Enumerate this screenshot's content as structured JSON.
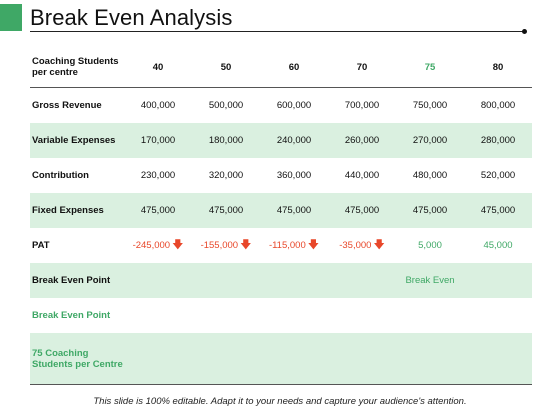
{
  "title": "Break Even Analysis",
  "colors": {
    "accent": "#3fa866",
    "row_shade": "#daf0e0",
    "loss": "#e8472a"
  },
  "table": {
    "header_label": "Coaching Students per centre",
    "columns": [
      "40",
      "50",
      "60",
      "70",
      "75",
      "80"
    ],
    "rows": [
      {
        "label": "Gross Revenue",
        "values": [
          "400,000",
          "500,000",
          "600,000",
          "700,000",
          "750,000",
          "800,000"
        ]
      },
      {
        "label": "Variable Expenses",
        "values": [
          "170,000",
          "180,000",
          "240,000",
          "260,000",
          "270,000",
          "280,000"
        ]
      },
      {
        "label": "Contribution",
        "values": [
          "230,000",
          "320,000",
          "360,000",
          "440,000",
          "480,000",
          "520,000"
        ]
      },
      {
        "label": "Fixed Expenses",
        "values": [
          "475,000",
          "475,000",
          "475,000",
          "475,000",
          "475,000",
          "475,000"
        ]
      },
      {
        "label": "PAT",
        "values": [
          "-245,000",
          "-155,000",
          "-115,000",
          "-35,000",
          "5,000",
          "45,000"
        ],
        "down_icon": "arrow-down-icon"
      },
      {
        "label": "Break Even Point",
        "note": "Break Even"
      },
      {
        "label": "Break Even Point"
      },
      {
        "label": "75 Coaching Students per Centre"
      }
    ]
  },
  "footer": "This slide is 100% editable. Adapt it to your needs and capture your audience's attention."
}
